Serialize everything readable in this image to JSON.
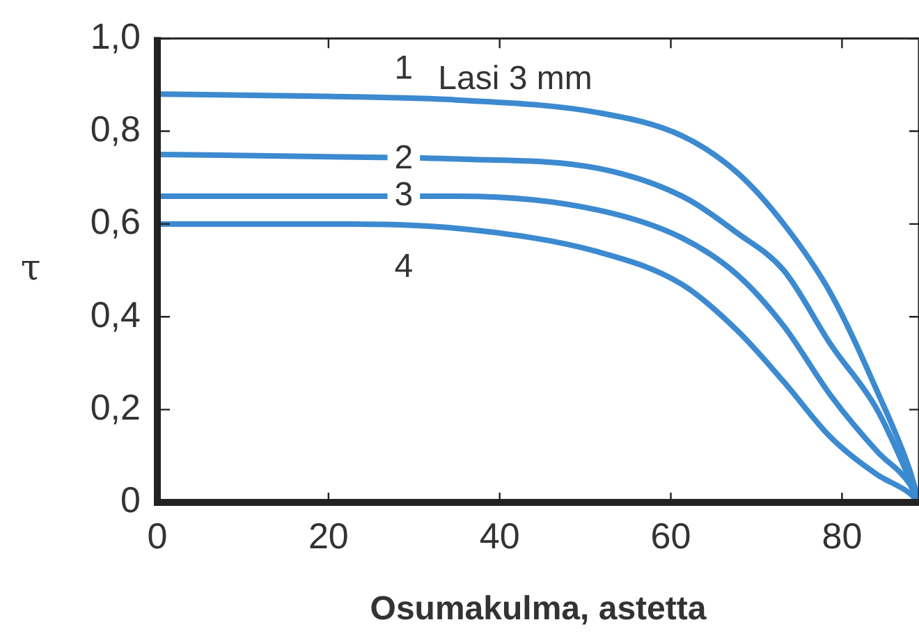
{
  "chart_data": {
    "type": "line",
    "xlabel": "Osumakulma, astetta",
    "ylabel": "τ",
    "x": [
      0,
      20,
      35.3,
      51.5,
      61.3,
      67.8,
      73.2,
      78.7,
      84.1,
      87.9,
      89
    ],
    "series": [
      {
        "name": "1",
        "color": "#3c8ad0",
        "values": [
          0.88,
          0.875,
          0.867,
          0.84,
          0.79,
          0.71,
          0.6,
          0.45,
          0.24,
          0.07,
          0
        ]
      },
      {
        "name": "2",
        "color": "#3c8ad0",
        "values": [
          0.75,
          0.745,
          0.74,
          0.72,
          0.66,
          0.58,
          0.5,
          0.34,
          0.2,
          0.05,
          0
        ]
      },
      {
        "name": "3",
        "color": "#3c8ad0",
        "values": [
          0.66,
          0.66,
          0.66,
          0.63,
          0.57,
          0.49,
          0.38,
          0.23,
          0.11,
          0.04,
          0
        ]
      },
      {
        "name": "4",
        "color": "#3c8ad0",
        "values": [
          0.6,
          0.6,
          0.59,
          0.54,
          0.47,
          0.37,
          0.26,
          0.14,
          0.06,
          0.02,
          0
        ]
      }
    ],
    "annotations": [
      "Lasi 3 mm"
    ],
    "xlim": [
      0,
      89
    ],
    "xticks": [
      0,
      20,
      40,
      60,
      80
    ],
    "ylim": [
      0,
      1
    ],
    "yticks": [
      {
        "value": 0,
        "label": "0"
      },
      {
        "value": 0.2,
        "label": "0,2"
      },
      {
        "value": 0.4,
        "label": "0,4"
      },
      {
        "value": 0.6,
        "label": "0,6"
      },
      {
        "value": 0.8,
        "label": "0,8"
      },
      {
        "value": 1,
        "label": "1,0"
      }
    ],
    "grid": false,
    "legend": false,
    "marker": "none",
    "line_style": "solid"
  }
}
